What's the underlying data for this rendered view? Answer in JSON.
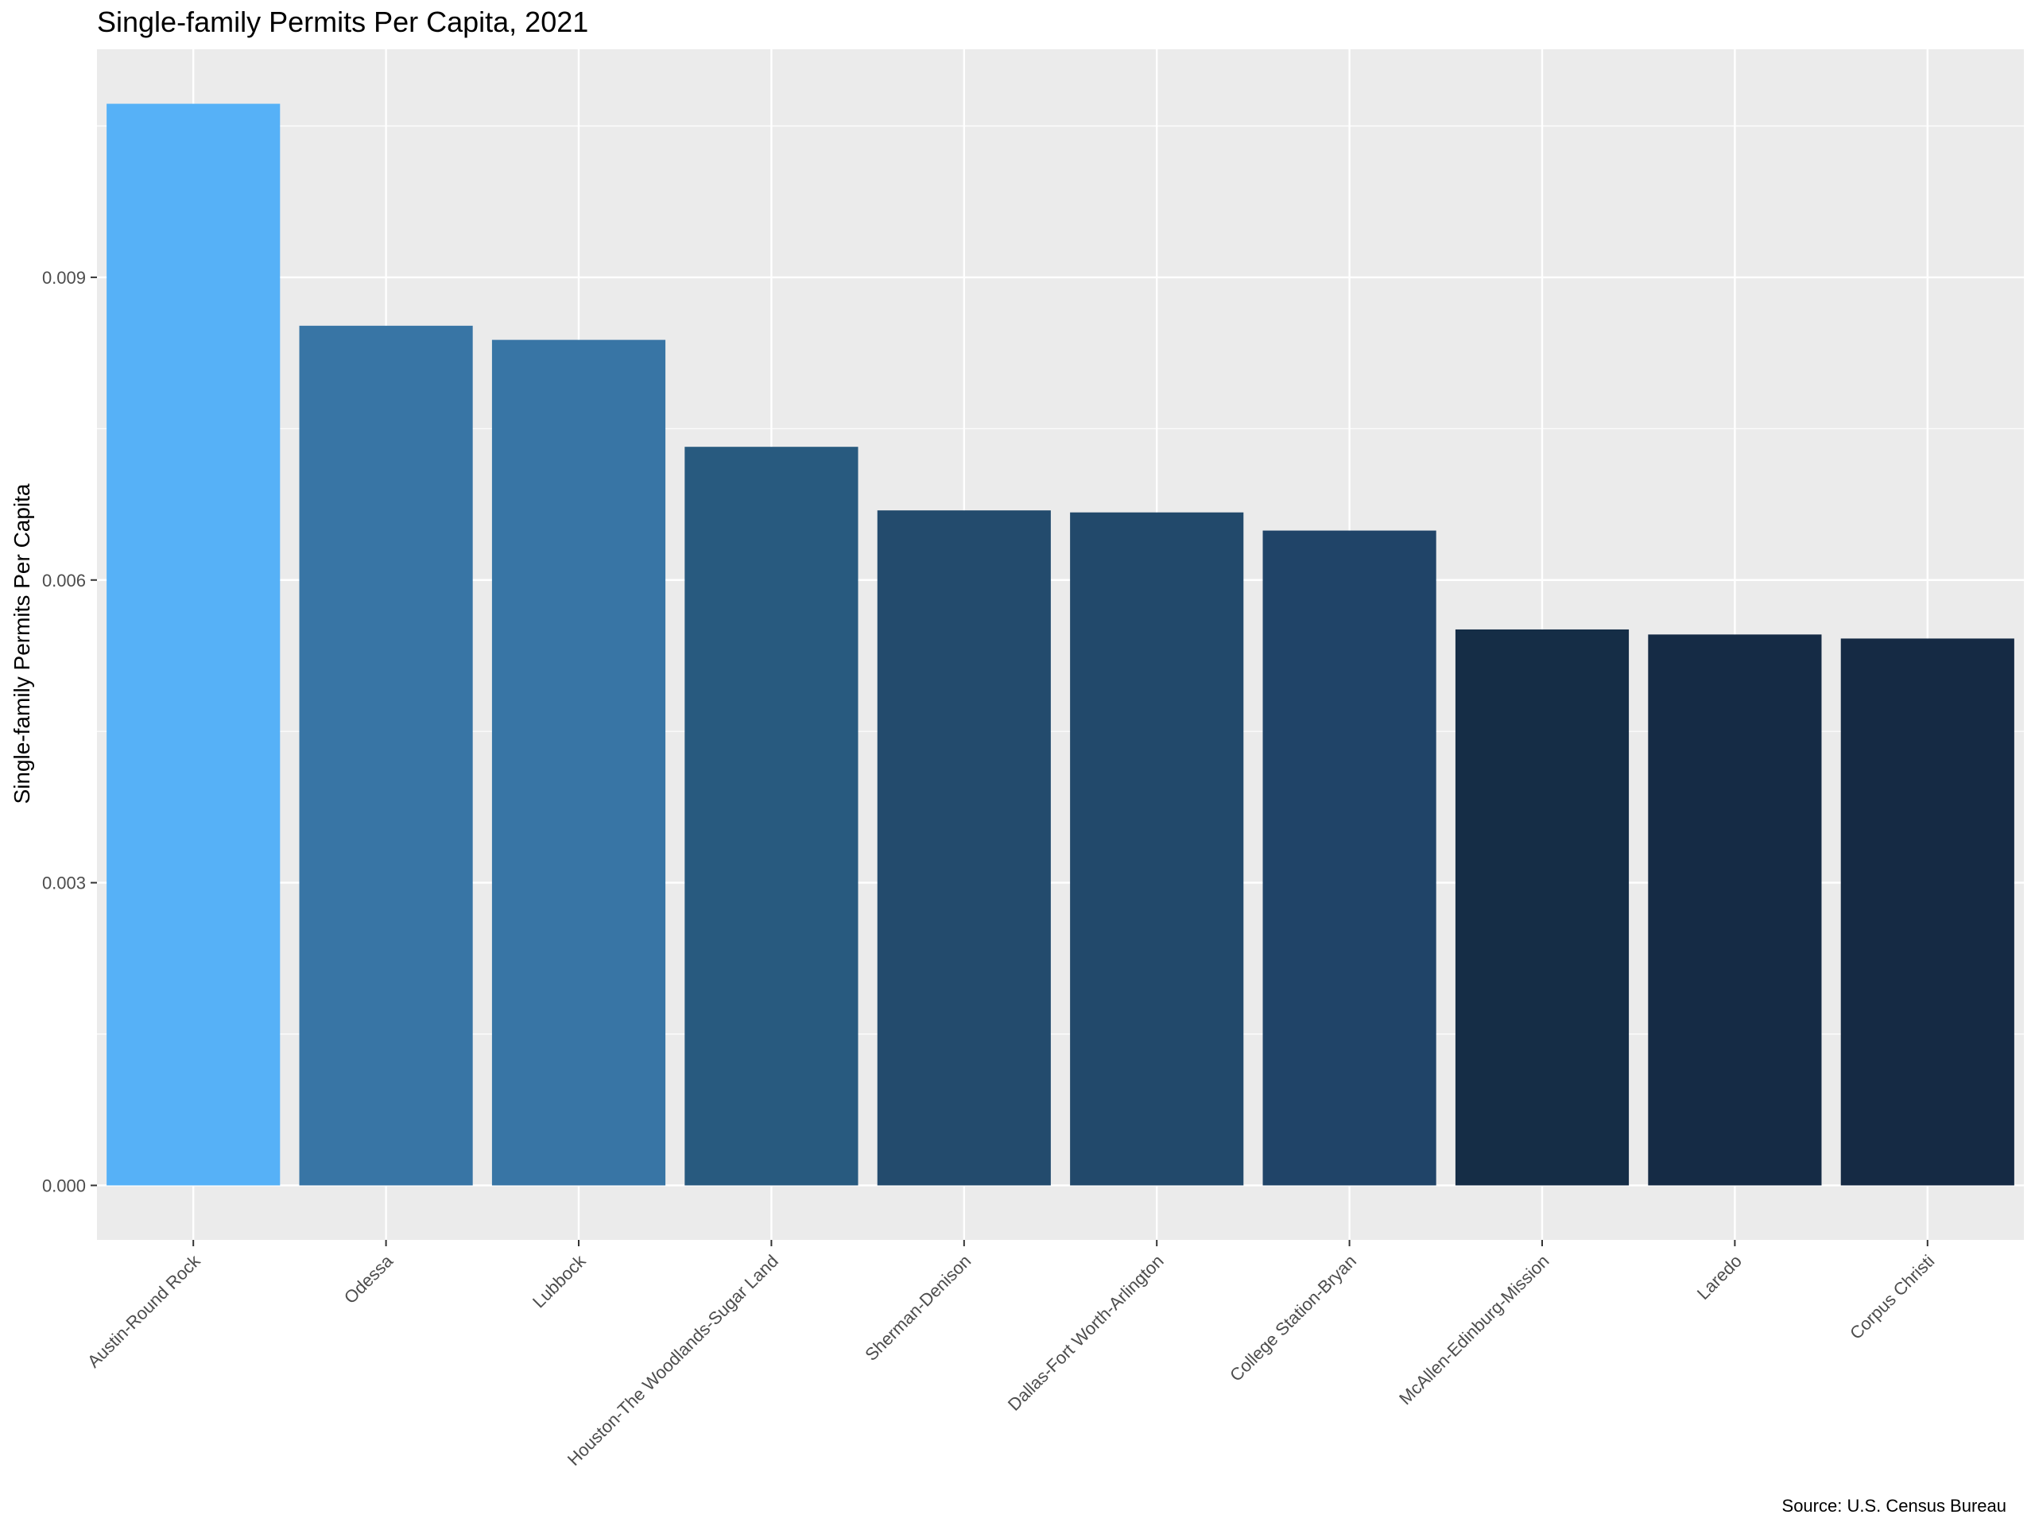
{
  "chart_data": {
    "type": "bar",
    "title": "Single-family Permits Per Capita, 2021",
    "xlabel": "",
    "ylabel": "Single-family Permits Per Capita",
    "caption": "Source: U.S. Census Bureau",
    "categories": [
      "Austin-Round Rock",
      "Odessa",
      "Lubbock",
      "Houston-The Woodlands-Sugar Land",
      "Sherman-Denison",
      "Dallas-Fort Worth-Arlington",
      "College Station-Bryan",
      "McAllen-Edinburg-Mission",
      "Laredo",
      "Corpus Christi"
    ],
    "values": [
      0.01072,
      0.00852,
      0.00838,
      0.00732,
      0.00669,
      0.00667,
      0.00649,
      0.00551,
      0.00546,
      0.00542
    ],
    "bar_colors": [
      "#56B1F7",
      "#3875A5",
      "#3875A5",
      "#285A7F",
      "#234B6D",
      "#22496B",
      "#204468",
      "#152D46",
      "#152B45",
      "#152A44"
    ],
    "yticks": [
      0.0,
      0.003,
      0.006,
      0.009
    ],
    "ytick_labels": [
      "0.000",
      "0.003",
      "0.006",
      "0.009"
    ],
    "ylim": [
      -0.00054,
      0.01126
    ],
    "grid": true,
    "panel_background": "#EBEBEB",
    "grid_color": "#FFFFFF",
    "legend": "none"
  }
}
